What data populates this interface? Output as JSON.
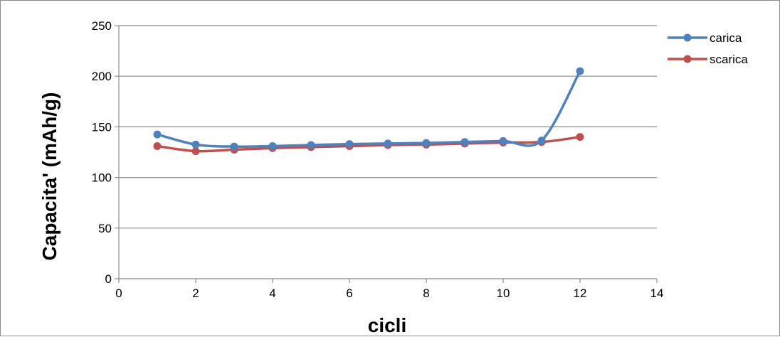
{
  "chart_data": {
    "type": "line",
    "title": "",
    "xlabel": "cicli",
    "ylabel": "Capacita' (mAh/g)",
    "xlim": [
      0,
      14
    ],
    "ylim": [
      0,
      250
    ],
    "x_ticks": [
      0,
      2,
      4,
      6,
      8,
      10,
      12,
      14
    ],
    "y_ticks": [
      0,
      50,
      100,
      150,
      200,
      250
    ],
    "grid": "horizontal",
    "legend_position": "top-right",
    "smooth": true,
    "series": [
      {
        "name": "carica",
        "color": "#4f81bd",
        "x": [
          1,
          2,
          3,
          4,
          5,
          6,
          7,
          8,
          9,
          10,
          11,
          12
        ],
        "y": [
          142.5,
          132.5,
          130.5,
          131.0,
          132.0,
          133.0,
          133.5,
          134.0,
          135.0,
          136.0,
          136.5,
          205.0
        ]
      },
      {
        "name": "scarica",
        "color": "#c0504d",
        "x": [
          1,
          2,
          3,
          4,
          5,
          6,
          7,
          8,
          9,
          10,
          11,
          12
        ],
        "y": [
          131.0,
          126.0,
          127.5,
          129.0,
          130.0,
          131.0,
          132.0,
          132.5,
          133.5,
          134.5,
          135.0,
          140.0
        ]
      }
    ]
  }
}
